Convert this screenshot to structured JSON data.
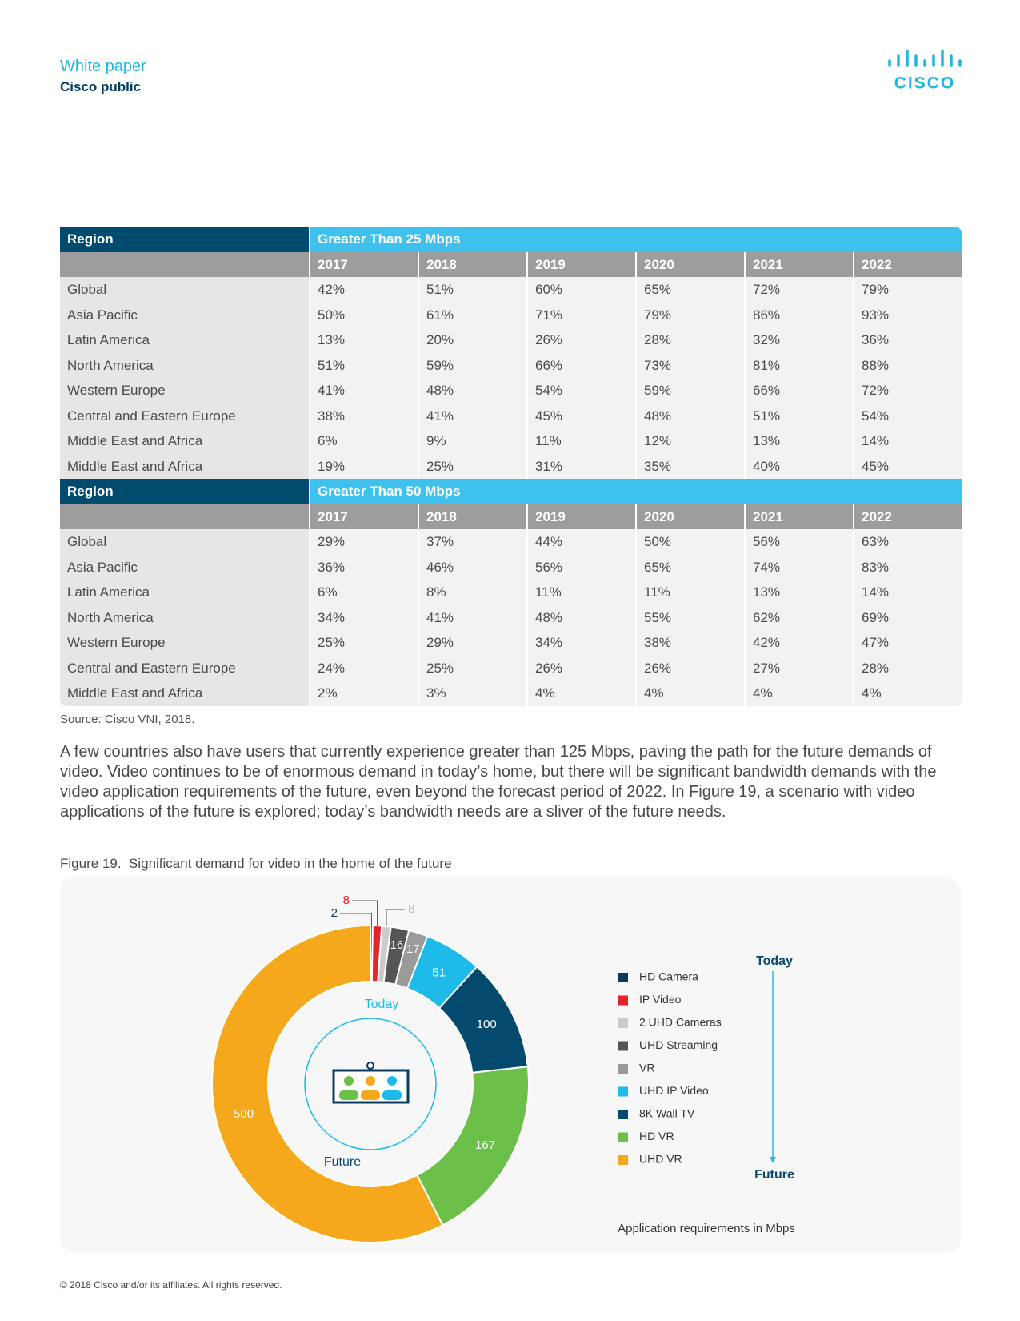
{
  "header": {
    "doc_type": "White paper",
    "classification": "Cisco public",
    "logo": "CISCO"
  },
  "tables": [
    {
      "header": [
        "Region",
        "Greater Than 25 Mbps"
      ],
      "years": [
        "2017",
        "2018",
        "2019",
        "2020",
        "2021",
        "2022"
      ],
      "rows": [
        [
          "Global",
          "42%",
          "51%",
          "60%",
          "65%",
          "72%",
          "79%"
        ],
        [
          "Asia Pacific",
          "50%",
          "61%",
          "71%",
          "79%",
          "86%",
          "93%"
        ],
        [
          "Latin America",
          "13%",
          "20%",
          "26%",
          "28%",
          "32%",
          "36%"
        ],
        [
          "North America",
          "51%",
          "59%",
          "66%",
          "73%",
          "81%",
          "88%"
        ],
        [
          "Western Europe",
          "41%",
          "48%",
          "54%",
          "59%",
          "66%",
          "72%"
        ],
        [
          "Central and Eastern Europe",
          "38%",
          "41%",
          "45%",
          "48%",
          "51%",
          "54%"
        ],
        [
          "Middle East and Africa",
          "6%",
          "9%",
          "11%",
          "12%",
          "13%",
          "14%"
        ],
        [
          "Middle East and Africa",
          "19%",
          "25%",
          "31%",
          "35%",
          "40%",
          "45%"
        ]
      ]
    },
    {
      "header": [
        "Region",
        "Greater Than 50 Mbps"
      ],
      "years": [
        "2017",
        "2018",
        "2019",
        "2020",
        "2021",
        "2022"
      ],
      "rows": [
        [
          "Global",
          "29%",
          "37%",
          "44%",
          "50%",
          "56%",
          "63%"
        ],
        [
          "Asia Pacific",
          "36%",
          "46%",
          "56%",
          "65%",
          "74%",
          "83%"
        ],
        [
          "Latin America",
          "6%",
          "8%",
          "11%",
          "11%",
          "13%",
          "14%"
        ],
        [
          "North America",
          "34%",
          "41%",
          "48%",
          "55%",
          "62%",
          "69%"
        ],
        [
          "Western Europe",
          "25%",
          "29%",
          "34%",
          "38%",
          "42%",
          "47%"
        ],
        [
          "Central and Eastern Europe",
          "24%",
          "25%",
          "26%",
          "26%",
          "27%",
          "28%"
        ],
        [
          "Middle East and Africa",
          "2%",
          "3%",
          "4%",
          "4%",
          "4%",
          "4%"
        ]
      ]
    }
  ],
  "source": "Source: Cisco VNI, 2018.",
  "paragraph": "A few countries also have users that currently experience greater than 125 Mbps, paving the path for the future demands of video. Video continues to be of enormous demand in today’s home, but there will be significant bandwidth demands with the video application requirements of the future, even beyond the forecast period of 2022. In Figure 19, a scenario with video applications of the future is explored; today’s bandwidth needs are a sliver of the future needs.",
  "figure": {
    "label": "Figure 19.",
    "caption": "Significant demand for video in the home of the future"
  },
  "chart_data": {
    "type": "donut",
    "labels": [
      "HD Camera",
      "IP Video",
      "2 UHD Cameras",
      "UHD Streaming",
      "VR",
      "UHD IP Video",
      "8K Wall TV",
      "HD VR",
      "UHD VR"
    ],
    "values": [
      2,
      8,
      8,
      16,
      17,
      51,
      100,
      167,
      500
    ],
    "colors": [
      "#0b3b5c",
      "#e3242b",
      "#cccccc",
      "#555555",
      "#9a9a9a",
      "#1ebbea",
      "#044a6e",
      "#6cc04a",
      "#f5a81c"
    ],
    "center_labels": {
      "top": "Today",
      "bottom": "Future"
    },
    "scale_labels": {
      "start": "Today",
      "end": "Future"
    },
    "note": "Application requirements in Mbps"
  },
  "footer": "© 2018 Cisco and/or its affiliates. All rights reserved."
}
